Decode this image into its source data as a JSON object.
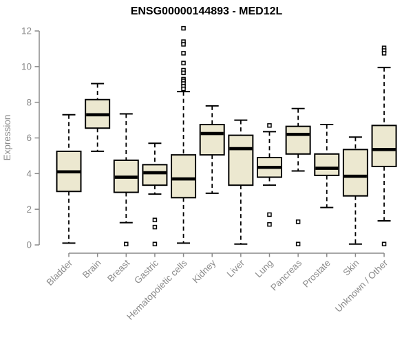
{
  "chart_data": {
    "type": "boxplot",
    "title": "ENSG00000144893 - MED12L",
    "ylabel": "Expression",
    "xlabel": "",
    "ylim": [
      0,
      12
    ],
    "yticks": [
      0,
      2,
      4,
      6,
      8,
      10,
      12
    ],
    "grid": false,
    "legend": "none",
    "categories": [
      "Bladder",
      "Brain",
      "Breast",
      "Gastric",
      "Hematopoietic cells",
      "Kidney",
      "Liver",
      "Lung",
      "Pancreas",
      "Prostate",
      "Skin",
      "Unknown / Other"
    ],
    "series": [
      {
        "name": "Bladder",
        "low": 0.1,
        "q1": 3.0,
        "median": 4.1,
        "q3": 5.25,
        "high": 7.3,
        "outliers": []
      },
      {
        "name": "Brain",
        "low": 5.25,
        "q1": 6.55,
        "median": 7.3,
        "q3": 8.15,
        "high": 9.05,
        "outliers": []
      },
      {
        "name": "Breast",
        "low": 1.25,
        "q1": 2.95,
        "median": 3.8,
        "q3": 4.75,
        "high": 7.35,
        "outliers": [
          0.05
        ]
      },
      {
        "name": "Gastric",
        "low": 2.85,
        "q1": 3.35,
        "median": 4.05,
        "q3": 4.5,
        "high": 5.7,
        "outliers": [
          1.4,
          1.0,
          0.05
        ]
      },
      {
        "name": "Hematopoietic cells",
        "low": 0.1,
        "q1": 2.65,
        "median": 3.7,
        "q3": 5.05,
        "high": 8.6,
        "outliers": [
          12.15,
          11.4,
          11.25,
          10.75,
          10.2,
          9.8,
          9.65,
          9.3,
          9.2,
          9.05,
          8.9,
          8.75
        ]
      },
      {
        "name": "Kidney",
        "low": 2.9,
        "q1": 5.05,
        "median": 6.25,
        "q3": 6.75,
        "high": 7.8,
        "outliers": []
      },
      {
        "name": "Liver",
        "low": 0.05,
        "q1": 3.35,
        "median": 5.4,
        "q3": 6.15,
        "high": 7.0,
        "outliers": []
      },
      {
        "name": "Lung",
        "low": 3.35,
        "q1": 3.8,
        "median": 4.35,
        "q3": 4.9,
        "high": 6.35,
        "outliers": [
          6.7,
          1.7,
          1.15
        ]
      },
      {
        "name": "Pancreas",
        "low": 4.15,
        "q1": 5.1,
        "median": 6.2,
        "q3": 6.65,
        "high": 7.65,
        "outliers": [
          1.3,
          0.05
        ]
      },
      {
        "name": "Prostate",
        "low": 2.1,
        "q1": 3.9,
        "median": 4.3,
        "q3": 5.1,
        "high": 6.75,
        "outliers": []
      },
      {
        "name": "Skin",
        "low": 0.05,
        "q1": 2.75,
        "median": 3.85,
        "q3": 5.35,
        "high": 6.05,
        "outliers": []
      },
      {
        "name": "Unknown / Other",
        "low": 1.35,
        "q1": 4.4,
        "median": 5.35,
        "q3": 6.7,
        "high": 9.95,
        "outliers": [
          11.05,
          10.9,
          10.75,
          0.05
        ]
      }
    ],
    "style": {
      "box_fill": "#ece8d0",
      "box_stroke": "#000000",
      "median_color": "#000000",
      "outlier_fill": "#ffffff",
      "axis_color": "#8a8a8a",
      "title_color": "#000000",
      "background": "#ffffff"
    }
  }
}
